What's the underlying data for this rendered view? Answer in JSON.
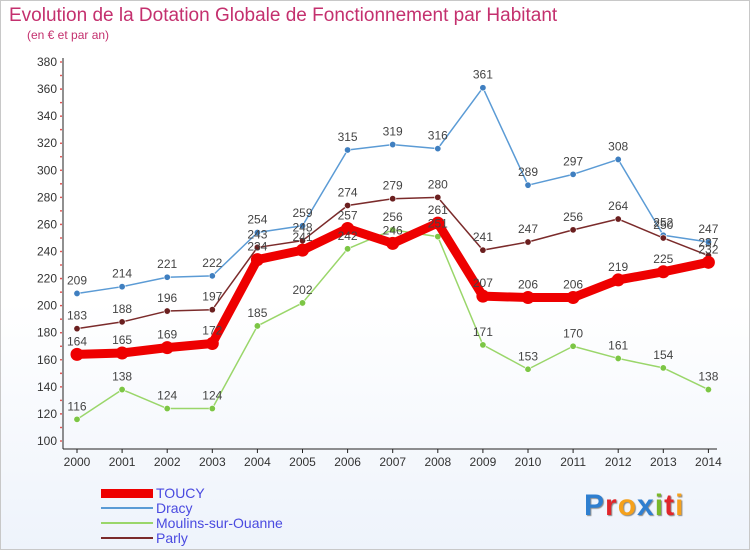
{
  "title": "Evolution de la Dotation Globale de Fonctionnement par Habitant",
  "subtitle": "(en € et par an)",
  "logo": {
    "letters": [
      "P",
      "r",
      "o",
      "x",
      "i",
      "t",
      "i"
    ],
    "colors": [
      "#2f7fd0",
      "#e0262b",
      "#f5a11c",
      "#2f7fd0",
      "#7ab828",
      "#e0262b",
      "#f5a11c"
    ]
  },
  "chart_data": {
    "type": "line",
    "title": "Evolution de la Dotation Globale de Fonctionnement par Habitant",
    "subtitle": "(en € et par an)",
    "x": [
      "2000",
      "2001",
      "2002",
      "2003",
      "2004",
      "2005",
      "2006",
      "2007",
      "2008",
      "2009",
      "2010",
      "2011",
      "2012",
      "2013",
      "2014"
    ],
    "ylim": [
      100,
      380
    ],
    "yticks": [
      100,
      120,
      140,
      160,
      180,
      200,
      220,
      240,
      260,
      280,
      300,
      320,
      340,
      360,
      380
    ],
    "grid": false,
    "legend_position": "bottom-left",
    "series": [
      {
        "name": "Dracy",
        "color": "#5b9bd5",
        "point_color": "#3f7fc0",
        "values": [
          209,
          214,
          221,
          222,
          254,
          259,
          315,
          319,
          316,
          361,
          289,
          297,
          308,
          252,
          247
        ]
      },
      {
        "name": "Moulins-sur-Ouanne",
        "color": "#9ad66a",
        "point_color": "#7cc645",
        "values": [
          116,
          138,
          124,
          124,
          185,
          202,
          242,
          256,
          251,
          171,
          153,
          170,
          161,
          154,
          138
        ]
      },
      {
        "name": "Parly",
        "color": "#7b2b2b",
        "point_color": "#6b1f1f",
        "values": [
          183,
          188,
          196,
          197,
          243,
          248,
          274,
          279,
          280,
          241,
          247,
          256,
          264,
          250,
          237
        ]
      },
      {
        "name": "TOUCY",
        "color": "#ee0000",
        "point_color": "#ee0000",
        "emphasis": true,
        "values": [
          164,
          165,
          169,
          172,
          234,
          241,
          257,
          246,
          261,
          207,
          206,
          206,
          219,
          225,
          232
        ]
      }
    ],
    "legend": [
      "TOUCY",
      "Dracy",
      "Moulins-sur-Ouanne",
      "Parly"
    ]
  }
}
